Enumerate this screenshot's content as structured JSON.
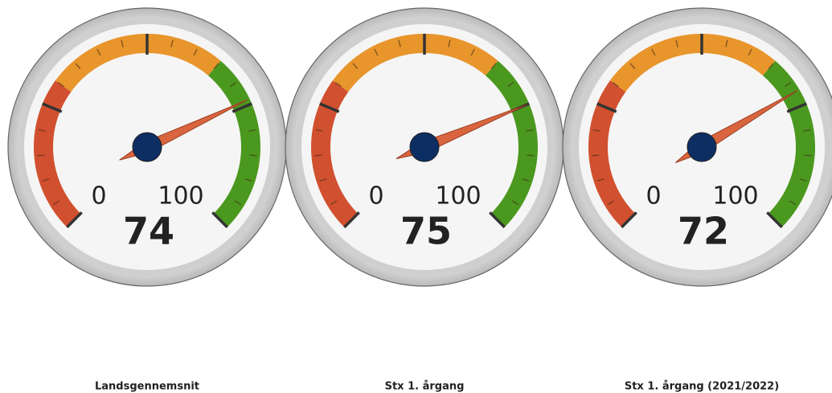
{
  "chart_data": [
    {
      "type": "gauge",
      "title": "Landsgennemsnit",
      "value": 74,
      "min": 0,
      "max": 100,
      "bands": [
        {
          "from": 0,
          "to": 30,
          "color": "#d1502f"
        },
        {
          "from": 30,
          "to": 65,
          "color": "#e8952c"
        },
        {
          "from": 65,
          "to": 100,
          "color": "#4b981f"
        }
      ],
      "major_ticks": [
        0,
        25,
        50,
        75,
        100
      ],
      "minor_ticks": [
        5,
        10,
        15,
        20,
        30,
        35,
        40,
        45,
        55,
        60,
        65,
        70,
        80,
        85,
        90,
        95
      ]
    },
    {
      "type": "gauge",
      "title": "Stx 1. årgang",
      "value": 75,
      "min": 0,
      "max": 100,
      "bands": [
        {
          "from": 0,
          "to": 30,
          "color": "#d1502f"
        },
        {
          "from": 30,
          "to": 65,
          "color": "#e8952c"
        },
        {
          "from": 65,
          "to": 100,
          "color": "#4b981f"
        }
      ],
      "major_ticks": [
        0,
        25,
        50,
        75,
        100
      ],
      "minor_ticks": [
        5,
        10,
        15,
        20,
        30,
        35,
        40,
        45,
        55,
        60,
        65,
        70,
        80,
        85,
        90,
        95
      ]
    },
    {
      "type": "gauge",
      "title": "Stx 1. årgang (2021/2022)",
      "value": 72,
      "min": 0,
      "max": 100,
      "bands": [
        {
          "from": 0,
          "to": 30,
          "color": "#d1502f"
        },
        {
          "from": 30,
          "to": 65,
          "color": "#e8952c"
        },
        {
          "from": 65,
          "to": 100,
          "color": "#4b981f"
        }
      ],
      "major_ticks": [
        0,
        25,
        50,
        75,
        100
      ],
      "minor_ticks": [
        5,
        10,
        15,
        20,
        30,
        35,
        40,
        45,
        55,
        60,
        65,
        70,
        80,
        85,
        90,
        95
      ]
    }
  ]
}
